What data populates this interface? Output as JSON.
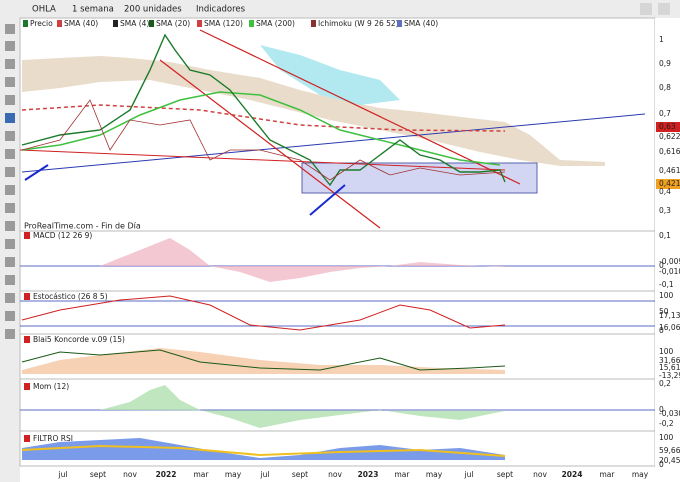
{
  "toolbar": {
    "symbol": "OHLA",
    "period": "1 semana",
    "units": "200 unidades",
    "indicators": "Indicadores"
  },
  "legend": [
    "Precio",
    "SMA (40)",
    "SMA (4)",
    "SMA (20)",
    "SMA (120)",
    "SMA (200)",
    "Ichimoku (W 9 26 52)",
    "SMA (40)"
  ],
  "price_axis": [
    "1",
    "0,9",
    "0,8",
    "0,7",
    "0,63",
    "0,622",
    "0,616",
    "0,461",
    "0,421",
    "0,4",
    "0,3"
  ],
  "watermark": "ProRealTime.com - Fin de Día",
  "panels": [
    {
      "title": "MACD (12 26 9)",
      "axis": [
        "0,1",
        "0",
        "-0,009",
        "-0,010",
        "-0,1"
      ]
    },
    {
      "title": "Estocástico (26 8 5)",
      "axis": [
        "100",
        "50",
        "17,13",
        "16,06",
        "0"
      ]
    },
    {
      "title": "Blai5 Koncorde v.09 (15)",
      "axis": [
        "100",
        "31,66",
        "15,61",
        "-13,29"
      ]
    },
    {
      "title": "Mom (12)",
      "axis": [
        "0,2",
        "0",
        "-0,030",
        "-0,2"
      ]
    },
    {
      "title": "FILTRO RSI",
      "axis": [
        "100",
        "59,66",
        "20,45",
        "0"
      ]
    }
  ],
  "x_axis": [
    "jul",
    "sept",
    "nov",
    "2022",
    "mar",
    "may",
    "jul",
    "sept",
    "nov",
    "2023",
    "mar",
    "may",
    "jul",
    "sept",
    "nov",
    "2024",
    "mar",
    "may"
  ]
}
